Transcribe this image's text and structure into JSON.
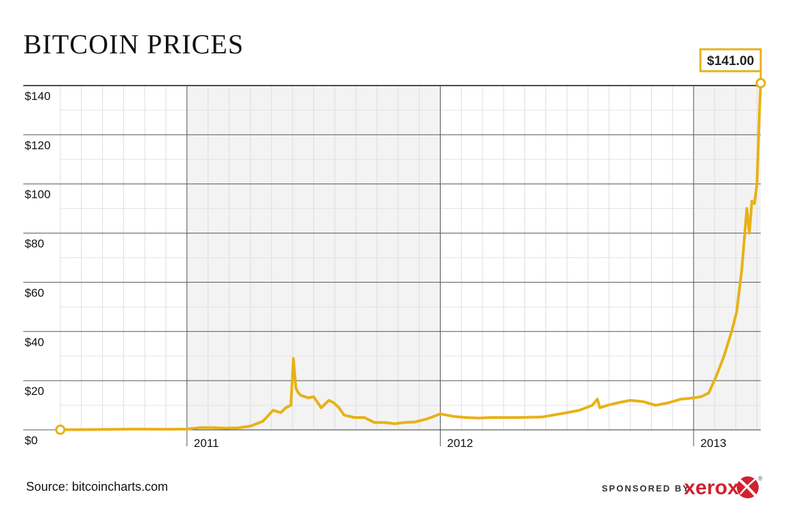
{
  "chart_data": {
    "type": "line",
    "title": "BITCOIN PRICES",
    "xlabel": "",
    "ylabel": "",
    "ylim": [
      0,
      140
    ],
    "y_ticks": [
      "$0",
      "$20",
      "$40",
      "$60",
      "$80",
      "$100",
      "$120",
      "$140"
    ],
    "y_tick_values": [
      0,
      20,
      40,
      60,
      80,
      100,
      120,
      140
    ],
    "x_ticks": [
      "2011",
      "2012",
      "2013"
    ],
    "x_tick_values": [
      2011.0,
      2012.0,
      2013.0
    ],
    "xlim": [
      2010.48,
      2013.3
    ],
    "grid": true,
    "shaded_year": "2011 and 2013",
    "line_color": "#e8b118",
    "x": [
      2010.5,
      2010.6,
      2010.7,
      2010.8,
      2010.9,
      2011.0,
      2011.05,
      2011.1,
      2011.15,
      2011.2,
      2011.25,
      2011.3,
      2011.34,
      2011.37,
      2011.39,
      2011.41,
      2011.42,
      2011.43,
      2011.44,
      2011.45,
      2011.48,
      2011.5,
      2011.53,
      2011.56,
      2011.58,
      2011.6,
      2011.62,
      2011.66,
      2011.7,
      2011.74,
      2011.78,
      2011.82,
      2011.86,
      2011.9,
      2011.95,
      2012.0,
      2012.05,
      2012.1,
      2012.15,
      2012.2,
      2012.3,
      2012.4,
      2012.5,
      2012.55,
      2012.6,
      2012.62,
      2012.63,
      2012.66,
      2012.7,
      2012.75,
      2012.8,
      2012.85,
      2012.9,
      2012.95,
      2013.0,
      2013.03,
      2013.06,
      2013.09,
      2013.12,
      2013.15,
      2013.17,
      2013.19,
      2013.21,
      2013.22,
      2013.23,
      2013.24,
      2013.25,
      2013.26,
      2013.265
    ],
    "values": [
      0.06,
      0.1,
      0.2,
      0.3,
      0.25,
      0.3,
      0.9,
      0.9,
      0.7,
      0.8,
      1.5,
      3.5,
      8,
      7,
      9,
      10,
      29,
      17,
      15,
      14,
      13,
      13.5,
      9,
      12,
      11,
      9,
      6,
      5,
      5,
      3,
      3,
      2.5,
      3,
      3.2,
      4.5,
      6.5,
      5.5,
      5,
      4.8,
      5,
      5,
      5.2,
      7,
      8,
      10,
      12.5,
      9,
      10,
      11,
      12,
      11.5,
      10,
      11,
      12.5,
      13,
      13.5,
      15,
      22,
      30,
      40,
      48,
      65,
      90,
      80,
      93,
      92,
      100,
      130,
      141
    ]
  },
  "callout": {
    "label": "$141.00",
    "value": 141
  },
  "source": "Source: bitcoincharts.com",
  "sponsor": {
    "prefix": "SPONSORED BY",
    "brand": "xerox",
    "mark": "®"
  }
}
